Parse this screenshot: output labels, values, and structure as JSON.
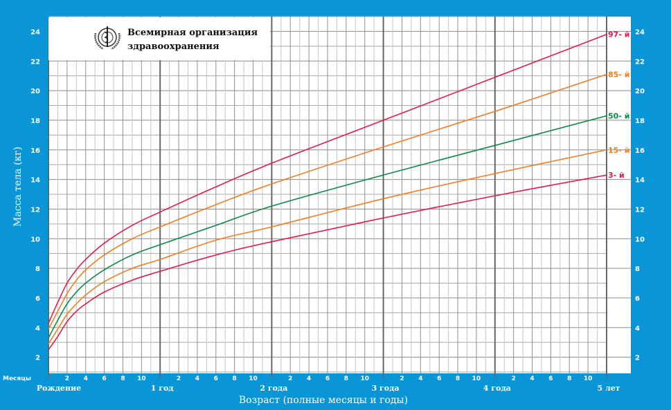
{
  "chart_data": {
    "type": "line",
    "title": "Всемирная организация здравоохранения",
    "organization_lines": [
      "Всемирная организация",
      "здравоохранения"
    ],
    "xlabel": "Возраст (полные месяцы и годы)",
    "ylabel": "Масса тела (кг)",
    "xlim": [
      0,
      60
    ],
    "ylim": [
      1,
      25
    ],
    "grid": true,
    "yticks": [
      2,
      4,
      6,
      8,
      10,
      12,
      14,
      16,
      18,
      20,
      22,
      24
    ],
    "month_ticks": [
      "2",
      "4",
      "6",
      "8",
      "10"
    ],
    "months_label": "Месяцы",
    "year_labels": [
      "Рождение",
      "1 год",
      "2 года",
      "3 года",
      "4 года",
      "5 лет"
    ],
    "x": [
      0,
      1,
      2,
      3,
      4,
      6,
      9,
      12,
      18,
      24,
      36,
      48,
      60
    ],
    "series": [
      {
        "name": "97- й",
        "color": "#e8194a",
        "values": [
          4.3,
          5.7,
          7.0,
          7.9,
          8.6,
          9.7,
          10.9,
          11.8,
          13.5,
          15.1,
          18.0,
          20.9,
          23.8
        ]
      },
      {
        "name": "85- й",
        "color": "#f47d20",
        "values": [
          3.9,
          5.1,
          6.3,
          7.2,
          7.9,
          8.9,
          10.0,
          10.8,
          12.3,
          13.7,
          16.2,
          18.6,
          21.1
        ]
      },
      {
        "name": "50- й",
        "color": "#0b8a45",
        "values": [
          3.3,
          4.5,
          5.6,
          6.4,
          7.0,
          7.9,
          8.9,
          9.6,
          10.9,
          12.2,
          14.3,
          16.3,
          18.3
        ]
      },
      {
        "name": "15- й",
        "color": "#f47d20",
        "values": [
          2.9,
          3.9,
          4.9,
          5.6,
          6.2,
          7.1,
          8.0,
          8.6,
          9.9,
          10.8,
          12.7,
          14.4,
          16.0
        ]
      },
      {
        "name": "3- й",
        "color": "#e8194a",
        "values": [
          2.5,
          3.4,
          4.4,
          5.1,
          5.6,
          6.4,
          7.2,
          7.8,
          8.9,
          9.8,
          11.4,
          12.9,
          14.3
        ]
      }
    ]
  }
}
